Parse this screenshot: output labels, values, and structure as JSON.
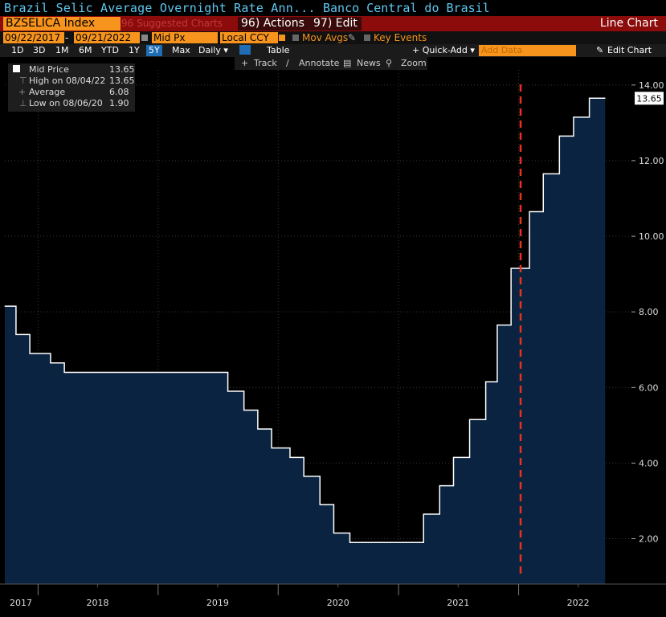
{
  "header": {
    "title": "Brazil Selic Average Overnight Rate Ann...",
    "publisher": "Banco Central do Brasil"
  },
  "toolbar": {
    "ticker": "BZSELICA Index",
    "suggested": "96 Suggested Charts",
    "actions": "96) Actions ▾",
    "edit": "97) Edit ▾",
    "chart_type": "Line Chart",
    "start_date": "09/22/2017",
    "date_sep": "-",
    "end_date": "09/21/2022",
    "field": "Mid Px",
    "currency": "Local CCY",
    "mov_avgs": "Mov Avgs",
    "key_events": "Key Events",
    "periods": [
      "1D",
      "3D",
      "1M",
      "6M",
      "YTD",
      "1Y",
      "5Y",
      "Max"
    ],
    "selected_period": "5Y",
    "frequency": "Daily ▾",
    "table": "Table",
    "quick_add": "+ Quick-Add ▾",
    "add_data_placeholder": "Add Data",
    "edit_chart": "Edit Chart",
    "track": "Track",
    "annotate": "Annotate",
    "news": "News",
    "zoom": "Zoom"
  },
  "legend": {
    "series": "Mid Price",
    "series_value": "13.65",
    "high_label": "High on 08/04/22",
    "high_value": "13.65",
    "avg_label": "Average",
    "avg_value": "6.08",
    "low_label": "Low on 08/06/20",
    "low_value": "1.90"
  },
  "colors": {
    "fill": "#0a2340",
    "line": "#ffffff",
    "marker": "#e8321e",
    "accent": "#f7941d",
    "header_bar": "#8c0b0b"
  },
  "chart_data": {
    "type": "area",
    "x_axis_labels": [
      "2017",
      "2018",
      "2019",
      "2020",
      "2021",
      "2022"
    ],
    "y_ticks": [
      2,
      4,
      6,
      8,
      10,
      12,
      14
    ],
    "y_tick_labels": [
      "2.00",
      "4.00",
      "6.00",
      "8.00",
      "10.00",
      "12.00",
      "14.00"
    ],
    "ylim": [
      0.8,
      14.4
    ],
    "xlim": [
      "2017-09-22",
      "2022-12-10"
    ],
    "last_value_label": "13.65",
    "vertical_marker_date": "2022-01-07",
    "series": [
      {
        "name": "Mid Price",
        "points": [
          {
            "date": "2017-09-22",
            "value": 8.15
          },
          {
            "date": "2017-10-26",
            "value": 7.4
          },
          {
            "date": "2017-12-07",
            "value": 6.9
          },
          {
            "date": "2018-02-08",
            "value": 6.65
          },
          {
            "date": "2018-03-22",
            "value": 6.4
          },
          {
            "date": "2019-08-01",
            "value": 5.9
          },
          {
            "date": "2019-09-19",
            "value": 5.4
          },
          {
            "date": "2019-10-31",
            "value": 4.9
          },
          {
            "date": "2019-12-12",
            "value": 4.4
          },
          {
            "date": "2020-02-06",
            "value": 4.15
          },
          {
            "date": "2020-03-19",
            "value": 3.65
          },
          {
            "date": "2020-05-07",
            "value": 2.9
          },
          {
            "date": "2020-06-18",
            "value": 2.15
          },
          {
            "date": "2020-08-06",
            "value": 1.9
          },
          {
            "date": "2021-03-18",
            "value": 2.65
          },
          {
            "date": "2021-05-06",
            "value": 3.4
          },
          {
            "date": "2021-06-17",
            "value": 4.15
          },
          {
            "date": "2021-08-05",
            "value": 5.15
          },
          {
            "date": "2021-09-23",
            "value": 6.15
          },
          {
            "date": "2021-10-28",
            "value": 7.65
          },
          {
            "date": "2021-12-09",
            "value": 9.15
          },
          {
            "date": "2022-02-03",
            "value": 10.65
          },
          {
            "date": "2022-03-17",
            "value": 11.65
          },
          {
            "date": "2022-05-05",
            "value": 12.65
          },
          {
            "date": "2022-06-17",
            "value": 13.15
          },
          {
            "date": "2022-08-04",
            "value": 13.65
          },
          {
            "date": "2022-09-21",
            "value": 13.65
          }
        ]
      }
    ]
  }
}
